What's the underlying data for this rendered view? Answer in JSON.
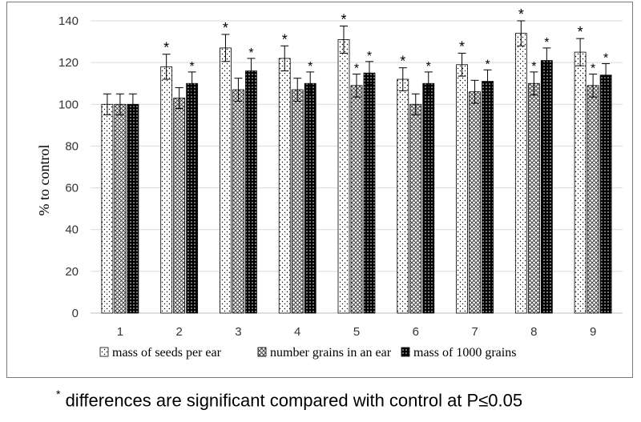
{
  "chart_data": {
    "type": "bar",
    "title": "",
    "xlabel": "",
    "ylabel": "% to control",
    "ylim": [
      0,
      140
    ],
    "yticks": [
      0,
      20,
      40,
      60,
      80,
      100,
      120,
      140
    ],
    "grid": true,
    "legend_position": "bottom",
    "categories": [
      "1",
      "2",
      "3",
      "4",
      "5",
      "6",
      "7",
      "8",
      "9"
    ],
    "series": [
      {
        "name": "mass of seeds per ear",
        "pattern": "dots",
        "values": [
          100,
          118,
          127,
          122,
          131,
          112,
          119,
          134,
          125
        ],
        "errors": [
          5,
          6,
          6.5,
          6,
          6.5,
          5.5,
          5.5,
          6,
          6.5
        ],
        "significant": [
          false,
          true,
          true,
          true,
          true,
          true,
          true,
          true,
          true
        ]
      },
      {
        "name": "number grains in an ear",
        "pattern": "crosshatch",
        "values": [
          100,
          103,
          107,
          107,
          109,
          100,
          106,
          110,
          109
        ],
        "errors": [
          5,
          5,
          5.5,
          5.5,
          5.5,
          5,
          5.5,
          5.5,
          5.5
        ],
        "significant": [
          false,
          false,
          false,
          false,
          true,
          false,
          false,
          true,
          true
        ]
      },
      {
        "name": "mass of 1000 grains",
        "pattern": "dark-dots",
        "values": [
          100,
          110,
          116,
          110,
          115,
          110,
          111,
          121,
          114
        ],
        "errors": [
          5,
          5.5,
          6,
          5.5,
          5.5,
          5.5,
          5.5,
          6,
          5.5
        ],
        "significant": [
          false,
          true,
          true,
          true,
          true,
          true,
          true,
          true,
          true
        ]
      }
    ],
    "significance_marker": "*"
  },
  "footnote": {
    "marker": "*",
    "text": " differences are significant compared with control at P≤0.05"
  },
  "colors": {
    "gridline": "#d9d9d9",
    "axis": "#bfbfbf",
    "bar_outline": "#000000",
    "dark_fill": "#000000"
  }
}
